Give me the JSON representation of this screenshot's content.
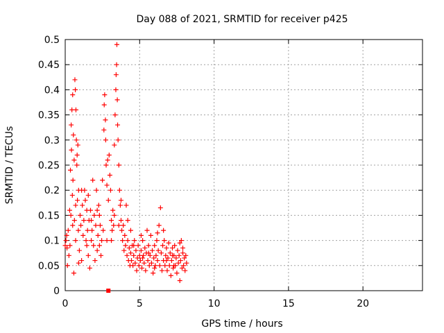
{
  "chart_data": {
    "type": "scatter",
    "title": "Day 088 of 2021, SRMTID for receiver p425",
    "xlabel": "GPS time / hours",
    "ylabel": "SRMTID / TECUs",
    "xlim": [
      0,
      24
    ],
    "ylim": [
      0,
      0.5
    ],
    "xticks": [
      0,
      5,
      10,
      15,
      20
    ],
    "xtick_labels": [
      "0",
      "5",
      "10",
      "15",
      "20"
    ],
    "yticks": [
      0,
      0.05,
      0.1,
      0.15,
      0.2,
      0.25,
      0.3,
      0.35,
      0.4,
      0.45,
      0.5
    ],
    "ytick_labels": [
      "0",
      "0.05",
      "0.1",
      "0.15",
      "0.2",
      "0.25",
      "0.3",
      "0.35",
      "0.4",
      "0.45",
      "0.5"
    ],
    "grid": true,
    "marker": "+",
    "color": "#ff0000",
    "series": [
      {
        "name": "SRMTID",
        "points": [
          [
            0.0,
            0.09
          ],
          [
            0.05,
            0.1
          ],
          [
            0.1,
            0.11
          ],
          [
            0.12,
            0.085
          ],
          [
            0.15,
            0.05
          ],
          [
            0.2,
            0.12
          ],
          [
            0.25,
            0.07
          ],
          [
            0.3,
            0.16
          ],
          [
            0.32,
            0.09
          ],
          [
            0.35,
            0.24
          ],
          [
            0.38,
            0.15
          ],
          [
            0.4,
            0.33
          ],
          [
            0.42,
            0.28
          ],
          [
            0.45,
            0.36
          ],
          [
            0.48,
            0.19
          ],
          [
            0.5,
            0.39
          ],
          [
            0.52,
            0.22
          ],
          [
            0.55,
            0.31
          ],
          [
            0.58,
            0.035
          ],
          [
            0.6,
            0.26
          ],
          [
            0.62,
            0.14
          ],
          [
            0.65,
            0.42
          ],
          [
            0.68,
            0.4
          ],
          [
            0.7,
            0.1
          ],
          [
            0.72,
            0.36
          ],
          [
            0.75,
            0.3
          ],
          [
            0.78,
            0.25
          ],
          [
            0.8,
            0.27
          ],
          [
            0.82,
            0.18
          ],
          [
            0.85,
            0.29
          ],
          [
            0.88,
            0.12
          ],
          [
            0.9,
            0.2
          ],
          [
            0.95,
            0.08
          ],
          [
            1.0,
            0.15
          ],
          [
            1.05,
            0.13
          ],
          [
            1.1,
            0.06
          ],
          [
            1.15,
            0.17
          ],
          [
            1.2,
            0.11
          ],
          [
            1.25,
            0.14
          ],
          [
            1.3,
            0.2
          ],
          [
            1.35,
            0.18
          ],
          [
            1.4,
            0.1
          ],
          [
            1.45,
            0.16
          ],
          [
            1.5,
            0.12
          ],
          [
            1.55,
            0.07
          ],
          [
            1.6,
            0.14
          ],
          [
            1.65,
            0.045
          ],
          [
            1.7,
            0.16
          ],
          [
            1.75,
            0.1
          ],
          [
            1.8,
            0.12
          ],
          [
            1.85,
            0.22
          ],
          [
            1.9,
            0.09
          ],
          [
            1.95,
            0.15
          ],
          [
            2.0,
            0.06
          ],
          [
            2.05,
            0.13
          ],
          [
            2.1,
            0.2
          ],
          [
            2.15,
            0.08
          ],
          [
            2.2,
            0.11
          ],
          [
            2.25,
            0.17
          ],
          [
            2.3,
            0.09
          ],
          [
            2.35,
            0.13
          ],
          [
            2.4,
            0.07
          ],
          [
            2.45,
            0.1
          ],
          [
            2.5,
            0.22
          ],
          [
            2.55,
            0.12
          ],
          [
            2.6,
            0.32
          ],
          [
            2.62,
            0.37
          ],
          [
            2.65,
            0.39
          ],
          [
            2.7,
            0.34
          ],
          [
            2.72,
            0.3
          ],
          [
            2.75,
            0.25
          ],
          [
            2.8,
            0.21
          ],
          [
            2.85,
            0.26
          ],
          [
            2.9,
            0.18
          ],
          [
            2.95,
            0.27
          ],
          [
            3.0,
            0.23
          ],
          [
            3.05,
            0.2
          ],
          [
            3.1,
            0.14
          ],
          [
            3.15,
            0.12
          ],
          [
            3.2,
            0.16
          ],
          [
            3.25,
            0.13
          ],
          [
            3.3,
            0.29
          ],
          [
            3.35,
            0.35
          ],
          [
            3.4,
            0.4
          ],
          [
            3.42,
            0.43
          ],
          [
            3.45,
            0.45
          ],
          [
            3.47,
            0.49
          ],
          [
            3.5,
            0.38
          ],
          [
            3.52,
            0.33
          ],
          [
            3.55,
            0.3
          ],
          [
            3.6,
            0.25
          ],
          [
            3.65,
            0.2
          ],
          [
            3.7,
            0.17
          ],
          [
            3.75,
            0.14
          ],
          [
            3.8,
            0.12
          ],
          [
            3.85,
            0.1
          ],
          [
            3.9,
            0.13
          ],
          [
            3.95,
            0.08
          ],
          [
            4.0,
            0.11
          ],
          [
            4.05,
            0.09
          ],
          [
            4.1,
            0.17
          ],
          [
            4.15,
            0.07
          ],
          [
            4.2,
            0.1
          ],
          [
            4.25,
            0.06
          ],
          [
            4.3,
            0.085
          ],
          [
            4.35,
            0.05
          ],
          [
            4.4,
            0.075
          ],
          [
            4.45,
            0.06
          ],
          [
            4.5,
            0.09
          ],
          [
            4.55,
            0.05
          ],
          [
            4.6,
            0.07
          ],
          [
            4.65,
            0.1
          ],
          [
            4.7,
            0.055
          ],
          [
            4.75,
            0.08
          ],
          [
            4.8,
            0.04
          ],
          [
            4.85,
            0.065
          ],
          [
            4.9,
            0.09
          ],
          [
            4.95,
            0.05
          ],
          [
            5.0,
            0.07
          ],
          [
            5.05,
            0.06
          ],
          [
            5.1,
            0.08
          ],
          [
            5.15,
            0.045
          ],
          [
            5.2,
            0.1
          ],
          [
            5.25,
            0.07
          ],
          [
            5.3,
            0.055
          ],
          [
            5.35,
            0.085
          ],
          [
            5.4,
            0.04
          ],
          [
            5.45,
            0.075
          ],
          [
            5.5,
            0.12
          ],
          [
            5.55,
            0.06
          ],
          [
            5.6,
            0.09
          ],
          [
            5.65,
            0.05
          ],
          [
            5.7,
            0.07
          ],
          [
            5.75,
            0.11
          ],
          [
            5.8,
            0.055
          ],
          [
            5.85,
            0.08
          ],
          [
            5.9,
            0.035
          ],
          [
            5.95,
            0.065
          ],
          [
            6.0,
            0.09
          ],
          [
            6.05,
            0.05
          ],
          [
            6.1,
            0.07
          ],
          [
            6.15,
            0.1
          ],
          [
            6.2,
            0.06
          ],
          [
            6.25,
            0.08
          ],
          [
            6.3,
            0.13
          ],
          [
            6.35,
            0.05
          ],
          [
            6.4,
            0.165
          ],
          [
            6.45,
            0.075
          ],
          [
            6.5,
            0.04
          ],
          [
            6.55,
            0.09
          ],
          [
            6.6,
            0.06
          ],
          [
            6.65,
            0.1
          ],
          [
            6.7,
            0.05
          ],
          [
            6.75,
            0.07
          ],
          [
            6.8,
            0.085
          ],
          [
            6.85,
            0.04
          ],
          [
            6.9,
            0.065
          ],
          [
            6.95,
            0.095
          ],
          [
            7.0,
            0.05
          ],
          [
            7.05,
            0.075
          ],
          [
            7.1,
            0.03
          ],
          [
            7.15,
            0.06
          ],
          [
            7.2,
            0.085
          ],
          [
            7.25,
            0.045
          ],
          [
            7.3,
            0.07
          ],
          [
            7.35,
            0.09
          ],
          [
            7.4,
            0.05
          ],
          [
            7.45,
            0.065
          ],
          [
            7.5,
            0.035
          ],
          [
            7.55,
            0.08
          ],
          [
            7.6,
            0.055
          ],
          [
            7.65,
            0.07
          ],
          [
            7.7,
            0.02
          ],
          [
            7.75,
            0.06
          ],
          [
            7.8,
            0.1
          ],
          [
            7.85,
            0.045
          ],
          [
            7.9,
            0.075
          ],
          [
            7.95,
            0.05
          ],
          [
            8.0,
            0.065
          ],
          [
            8.05,
            0.04
          ],
          [
            8.1,
            0.07
          ],
          [
            8.15,
            0.055
          ],
          [
            0.5,
            0.13
          ],
          [
            0.7,
            0.17
          ],
          [
            1.1,
            0.2
          ],
          [
            1.45,
            0.09
          ],
          [
            1.75,
            0.14
          ],
          [
            2.3,
            0.15
          ],
          [
            2.8,
            0.1
          ],
          [
            3.3,
            0.15
          ],
          [
            3.6,
            0.13
          ],
          [
            4.2,
            0.14
          ],
          [
            4.6,
            0.09
          ],
          [
            5.1,
            0.11
          ],
          [
            5.6,
            0.075
          ],
          [
            6.2,
            0.115
          ],
          [
            6.8,
            0.06
          ],
          [
            7.3,
            0.05
          ],
          [
            7.9,
            0.085
          ],
          [
            0.9,
            0.055
          ],
          [
            1.55,
            0.19
          ],
          [
            2.15,
            0.16
          ],
          [
            3.1,
            0.1
          ],
          [
            3.75,
            0.18
          ],
          [
            4.4,
            0.12
          ],
          [
            5.2,
            0.065
          ],
          [
            6.0,
            0.045
          ],
          [
            6.6,
            0.12
          ],
          [
            7.2,
            0.07
          ],
          [
            7.7,
            0.095
          ]
        ]
      },
      {
        "name": "missing-data marker",
        "marker": "square",
        "points": [
          [
            2.9,
            0.0
          ]
        ]
      }
    ]
  }
}
